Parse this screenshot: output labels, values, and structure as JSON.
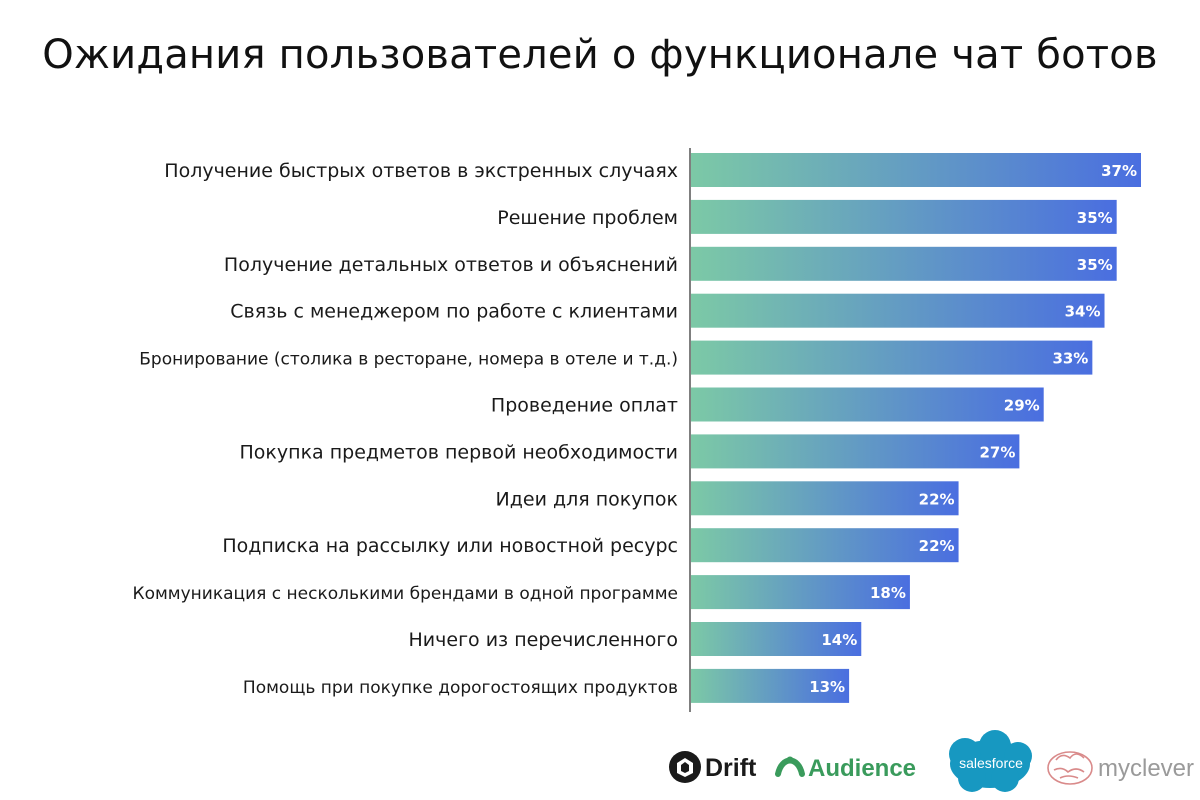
{
  "chart_data": {
    "type": "bar",
    "orientation": "horizontal",
    "title": "Ожидания пользователей о функционале чат ботов",
    "categories": [
      "Получение быстрых ответов в экстренных случаях",
      "Решение проблем",
      "Получение детальных ответов и объяснений",
      "Связь с менеджером по работе с клиентами",
      "Бронирование (столика в ресторане, номера в отеле и т.д.)",
      "Проведение оплат",
      "Покупка предметов первой необходимости",
      "Идеи для покупок",
      "Подписка на рассылку или новостной ресурс",
      "Коммуникация с несколькими брендами в одной программе",
      "Ничего из перечисленного",
      "Помощь при покупке дорогостоящих продуктов"
    ],
    "values": [
      37,
      35,
      35,
      34,
      33,
      29,
      27,
      22,
      22,
      18,
      14,
      13
    ],
    "value_labels": [
      "37%",
      "35%",
      "35%",
      "34%",
      "33%",
      "29%",
      "27%",
      "22%",
      "22%",
      "18%",
      "14%",
      "13%"
    ],
    "xlabel": "",
    "ylabel": "",
    "xlim": [
      0,
      37
    ],
    "grid": false,
    "legend": "none",
    "colors": {
      "bar_gradient_start": "#7cc9a6",
      "bar_gradient_end": "#4a6ee0",
      "axis": "#555555",
      "value_text": "#ffffff"
    }
  },
  "logos": {
    "drift": "Drift",
    "audience": "Audience",
    "salesforce": "salesforce",
    "myclever": "myclever"
  },
  "colors": {
    "drift": "#1a1a1a",
    "audience": "#3a9b5c",
    "salesforce": "#1798c1",
    "myclever": "#c96b6b"
  }
}
